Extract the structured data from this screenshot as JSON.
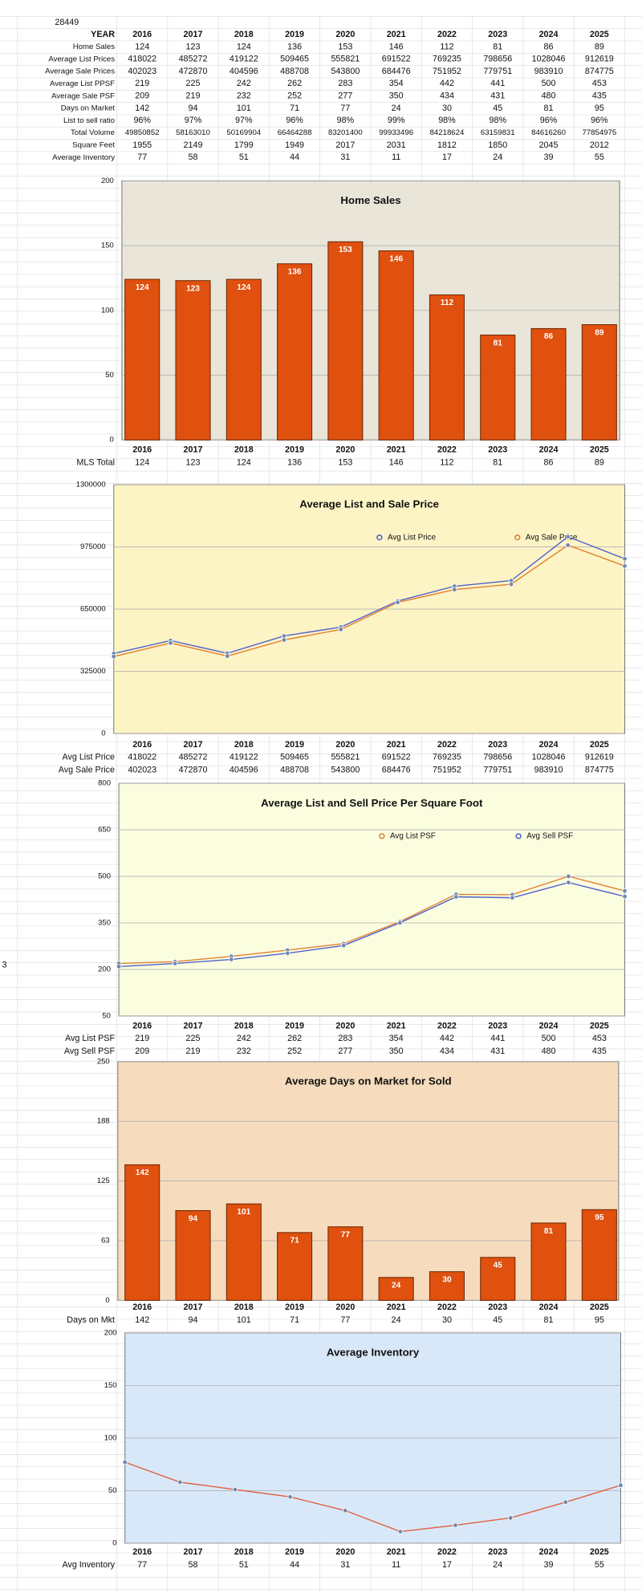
{
  "sheet": {
    "cell_a1": "28449",
    "stray_cell": "3"
  },
  "table": {
    "header": [
      "YEAR",
      "2016",
      "2017",
      "2018",
      "2019",
      "2020",
      "2021",
      "2022",
      "2023",
      "2024",
      "2025"
    ],
    "rows": [
      [
        "Home Sales",
        124,
        123,
        124,
        136,
        153,
        146,
        112,
        81,
        86,
        89
      ],
      [
        "Average List Prices",
        418022,
        485272,
        419122,
        509465,
        555821,
        691522,
        769235,
        798656,
        1028046,
        912619
      ],
      [
        "Average Sale Prices",
        402023,
        472870,
        404596,
        488708,
        543800,
        684476,
        751952,
        779751,
        983910,
        874775
      ],
      [
        "Average List PPSF",
        219,
        225,
        242,
        262,
        283,
        354,
        442,
        441,
        500,
        453
      ],
      [
        "Average Sale PSF",
        209,
        219,
        232,
        252,
        277,
        350,
        434,
        431,
        480,
        435
      ],
      [
        "Days on Market",
        142,
        94,
        101,
        71,
        77,
        24,
        30,
        45,
        81,
        95
      ],
      [
        "List to sell ratio",
        "96%",
        "97%",
        "97%",
        "96%",
        "98%",
        "99%",
        "98%",
        "98%",
        "96%",
        "96%"
      ],
      [
        "Total Volume",
        49850852,
        58163010,
        50169904,
        66464288,
        83201400,
        99933496,
        84218624,
        63159831,
        84616260,
        77854975
      ],
      [
        "Square Feet",
        1955,
        2149,
        1799,
        1949,
        2017,
        2031,
        1812,
        1850,
        2045,
        2012
      ],
      [
        "Average Inventory",
        77,
        58,
        51,
        44,
        31,
        11,
        17,
        24,
        39,
        55
      ]
    ]
  },
  "chart_data": [
    {
      "type": "bar",
      "title": "Home Sales",
      "categories": [
        "2016",
        "2017",
        "2018",
        "2019",
        "2020",
        "2021",
        "2022",
        "2023",
        "2024",
        "2025"
      ],
      "series": [
        {
          "name": "MLS Total",
          "color": "#e0500f",
          "values": [
            124,
            123,
            124,
            136,
            153,
            146,
            112,
            81,
            86,
            89
          ]
        }
      ],
      "ylim": [
        0,
        200
      ],
      "yticks": [
        0,
        50,
        100,
        150,
        200
      ],
      "grid": true,
      "legend": false,
      "plot_color": "#e9e5d9"
    },
    {
      "type": "line",
      "title": "Average List and Sale Price",
      "categories": [
        "2016",
        "2017",
        "2018",
        "2019",
        "2020",
        "2021",
        "2022",
        "2023",
        "2024",
        "2025"
      ],
      "series": [
        {
          "name": "Avg List Price",
          "color": "#5060c8",
          "values": [
            418022,
            485272,
            419122,
            509465,
            555821,
            691522,
            769235,
            798656,
            1028046,
            912619
          ]
        },
        {
          "name": "Avg Sale Price",
          "color": "#e08030",
          "values": [
            402023,
            472870,
            404596,
            488708,
            543800,
            684476,
            751952,
            779751,
            983910,
            874775
          ]
        }
      ],
      "ylim": [
        0,
        1300000
      ],
      "yticks": [
        0,
        325000,
        650000,
        975000,
        1300000
      ],
      "grid": true,
      "legend": true,
      "plot_color": "#fdf4c6"
    },
    {
      "type": "line",
      "title": "Average List and Sell Price Per Square Foot",
      "categories": [
        "2016",
        "2017",
        "2018",
        "2019",
        "2020",
        "2021",
        "2022",
        "2023",
        "2024",
        "2025"
      ],
      "series": [
        {
          "name": "Avg List PSF",
          "color": "#e08030",
          "values": [
            219,
            225,
            242,
            262,
            283,
            354,
            442,
            441,
            500,
            453
          ]
        },
        {
          "name": "Avg Sell PSF",
          "color": "#5060c8",
          "values": [
            209,
            219,
            232,
            252,
            277,
            350,
            434,
            431,
            480,
            435
          ]
        }
      ],
      "ylim": [
        50,
        800
      ],
      "yticks": [
        50,
        200,
        350,
        500,
        650,
        800
      ],
      "grid": true,
      "legend": true,
      "plot_color": "#fbfddf"
    },
    {
      "type": "bar",
      "title": "Average Days on Market for Sold",
      "categories": [
        "2016",
        "2017",
        "2018",
        "2019",
        "2020",
        "2021",
        "2022",
        "2023",
        "2024",
        "2025"
      ],
      "series": [
        {
          "name": "Days on Mkt",
          "color": "#e0500f",
          "values": [
            142,
            94,
            101,
            71,
            77,
            24,
            30,
            45,
            81,
            95
          ]
        }
      ],
      "ylim": [
        0,
        250
      ],
      "yticks": [
        0,
        {
          "value": 62.5,
          "label": "63"
        },
        125,
        {
          "value": 187.5,
          "label": "188"
        },
        250
      ],
      "grid": true,
      "legend": false,
      "plot_color": "#f6dcbd"
    },
    {
      "type": "line",
      "title": "Average Inventory",
      "categories": [
        "2016",
        "2017",
        "2018",
        "2019",
        "2020",
        "2021",
        "2022",
        "2023",
        "2024",
        "2025"
      ],
      "series": [
        {
          "name": "Avg Inventory",
          "color": "#e06040",
          "values": [
            77,
            58,
            51,
            44,
            31,
            11,
            17,
            24,
            39,
            55
          ]
        }
      ],
      "ylim": [
        0,
        200
      ],
      "yticks": [
        0,
        50,
        100,
        150,
        200
      ],
      "grid": true,
      "legend": false,
      "plot_color": "#d9e8f8"
    }
  ]
}
